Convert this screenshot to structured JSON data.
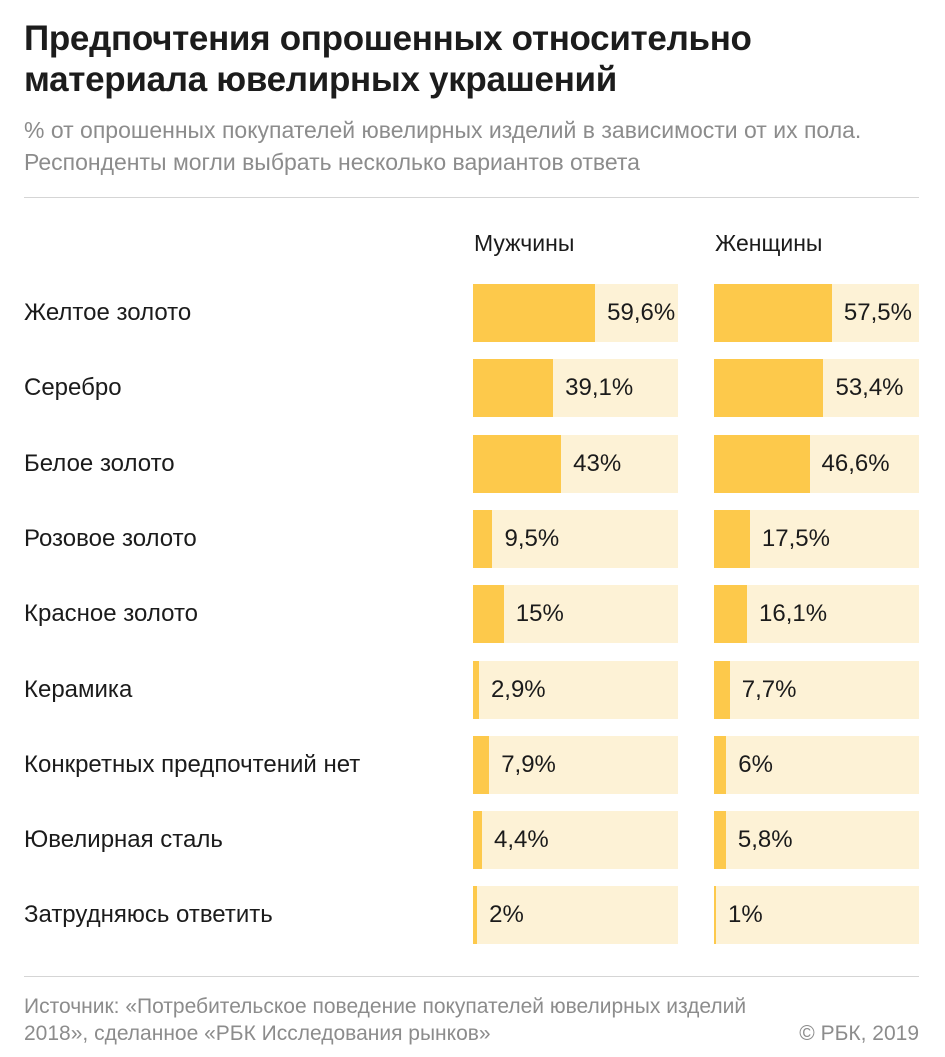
{
  "title": "Предпочтения опрошенных относительно материала ювелирных украшений",
  "subtitle": "% от опрошенных покупателей ювелирных изделий в зависимости от их пола. Респонденты могли выбрать несколько вариантов ответа",
  "source": "Источник: «Потребительское поведение покупателей ювелирных изделий 2018», сделанное «РБК Исследования рынков»",
  "copyright": "© РБК, 2019",
  "colors": {
    "bar_fill": "#fdc94b",
    "bar_track": "#fdf2d6",
    "subtitle": "#8c8c8c"
  },
  "chart_data": {
    "type": "bar",
    "orientation": "horizontal",
    "unit": "%",
    "xlim": [
      0,
      100
    ],
    "categories": [
      "Желтое золото",
      "Серебро",
      "Белое золото",
      "Розовое золото",
      "Красное золото",
      "Керамика",
      "Конкретных предпочтений нет",
      "Ювелирная сталь",
      "Затрудняюсь ответить"
    ],
    "series": [
      {
        "name": "Мужчины",
        "values": [
          59.6,
          39.1,
          43,
          9.5,
          15,
          2.9,
          7.9,
          4.4,
          2
        ],
        "labels": [
          "59,6%",
          "39,1%",
          "43%",
          "9,5%",
          "15%",
          "2,9%",
          "7,9%",
          "4,4%",
          "2%"
        ]
      },
      {
        "name": "Женщины",
        "values": [
          57.5,
          53.4,
          46.6,
          17.5,
          16.1,
          7.7,
          6,
          5.8,
          1
        ],
        "labels": [
          "57,5%",
          "53,4%",
          "46,6%",
          "17,5%",
          "16,1%",
          "7,7%",
          "6%",
          "5,8%",
          "1%"
        ]
      }
    ]
  }
}
